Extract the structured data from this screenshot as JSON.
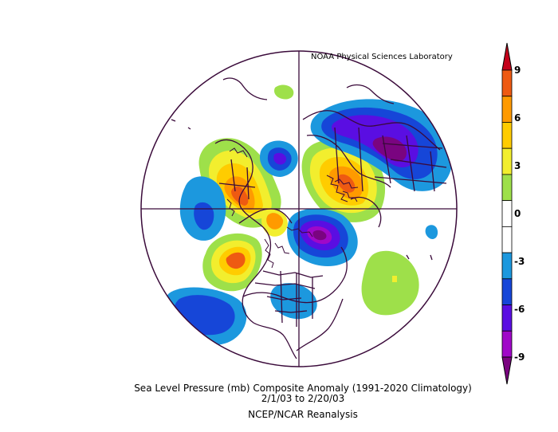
{
  "credit": "NOAA Physical Sciences Laboratory",
  "title_line1": "Sea Level Pressure (mb) Composite Anomaly (1991-2020 Climatology)",
  "title_line2": "2/1/03  to 2/20/03",
  "title_line3": "NCEP/NCAR Reanalysis",
  "colorbar": {
    "tick_labels": [
      "9",
      "6",
      "3",
      "0",
      "-3",
      "-6",
      "-9"
    ],
    "colors": [
      "#c4001a",
      "#ee5a12",
      "#ff9a00",
      "#ffcc00",
      "#f2ee2e",
      "#9ee04a",
      "#ffffff",
      "#ffffff",
      "#1c98de",
      "#1646d8",
      "#5a0ee2",
      "#a008c8",
      "#7a0480"
    ]
  },
  "map_features": {
    "projection": "north-polar-stereographic",
    "anomaly_regions": [
      {
        "name": "positive-anomaly-north-atlantic-europe",
        "sign": "positive",
        "peak": 9
      },
      {
        "name": "positive-anomaly-siberia",
        "sign": "positive",
        "peak": 9
      },
      {
        "name": "positive-anomaly-alaska-north-pacific",
        "sign": "positive",
        "peak": 9
      },
      {
        "name": "negative-anomaly-arctic-ocean",
        "sign": "negative",
        "peak": -9
      },
      {
        "name": "negative-anomaly-central-asia",
        "sign": "negative",
        "peak": -9
      },
      {
        "name": "negative-anomaly-north-pacific",
        "sign": "negative",
        "peak": -6
      },
      {
        "name": "negative-anomaly-tropical-pacific",
        "sign": "negative",
        "peak": -6
      },
      {
        "name": "positive-anomaly-subtropical-atlantic",
        "sign": "positive",
        "peak": 3
      }
    ]
  }
}
